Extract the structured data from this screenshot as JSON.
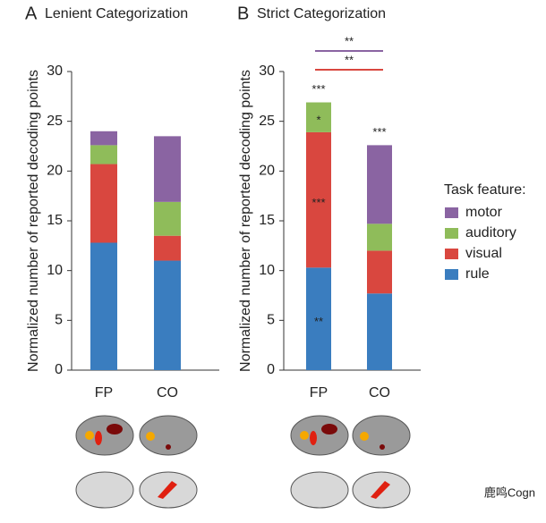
{
  "chart_data": [
    {
      "type": "bar",
      "stacked": true,
      "panel": "A",
      "title": "Lenient Categorization",
      "ylabel": "Normalized number of reported decoding points",
      "categories": [
        "FP",
        "CO"
      ],
      "series": [
        {
          "name": "rule",
          "color": "#3a7dbf",
          "values": [
            12.8,
            11.0
          ]
        },
        {
          "name": "visual",
          "color": "#d9473f",
          "values": [
            7.9,
            2.5
          ]
        },
        {
          "name": "auditory",
          "color": "#8fbc5a",
          "values": [
            1.9,
            3.4
          ]
        },
        {
          "name": "motor",
          "color": "#8a64a2",
          "values": [
            1.4,
            6.6
          ]
        }
      ],
      "ylim": [
        0,
        30
      ],
      "yticks": [
        0,
        5,
        10,
        15,
        20,
        25,
        30
      ]
    },
    {
      "type": "bar",
      "stacked": true,
      "panel": "B",
      "title": "Strict Categorization",
      "ylabel": "Normalized number of reported decoding points",
      "categories": [
        "FP",
        "CO"
      ],
      "series": [
        {
          "name": "rule",
          "color": "#3a7dbf",
          "values": [
            10.3,
            7.7
          ]
        },
        {
          "name": "visual",
          "color": "#d9473f",
          "values": [
            13.6,
            4.3
          ]
        },
        {
          "name": "auditory",
          "color": "#8fbc5a",
          "values": [
            3.0,
            2.7
          ]
        },
        {
          "name": "motor",
          "color": "#8a64a2",
          "values": [
            0,
            7.9
          ]
        }
      ],
      "ylim": [
        0,
        30
      ],
      "yticks": [
        0,
        5,
        10,
        15,
        20,
        25,
        30
      ],
      "annotations": [
        {
          "text": "***",
          "category": "FP"
        },
        {
          "text": "*",
          "category": "FP",
          "series": "auditory"
        },
        {
          "text": "***",
          "category": "FP",
          "series": "visual"
        },
        {
          "text": "**",
          "category": "FP",
          "series": "rule"
        },
        {
          "text": "***",
          "category": "CO"
        }
      ],
      "comparisons": [
        {
          "text": "**",
          "color": "#8a64a2"
        },
        {
          "text": "**",
          "color": "#d9473f"
        }
      ],
      "legend_title": "Task feature:"
    }
  ],
  "watermark": "鹿鸣Cogn"
}
